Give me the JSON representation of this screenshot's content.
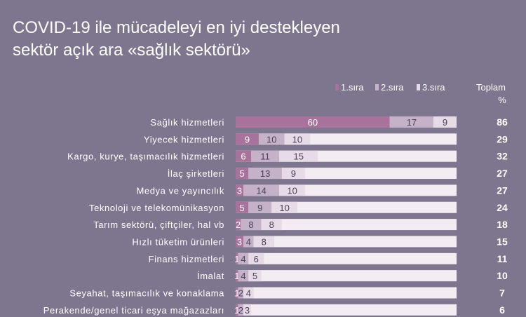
{
  "title_lines": [
    "COVID-19 ile mücadeleyi en iyi destekleyen",
    "sektör açık ara «sağlık sektörü»"
  ],
  "colors": {
    "background": "#7e768f",
    "series1": "#a9729c",
    "series2": "#c6b2c8",
    "series3": "#e6dbe6",
    "track": "#f3edf3"
  },
  "chart_data": {
    "type": "bar",
    "orientation": "horizontal",
    "stacked": true,
    "title": "COVID-19 ile mücadeleyi en iyi destekleyen sektör açık ara «sağlık sektörü»",
    "total_header": [
      "Toplam",
      "%"
    ],
    "xlim": [
      0,
      86
    ],
    "categories": [
      "Sağlık hizmetleri",
      "Yiyecek hizmetleri",
      "Kargo, kurye, taşımacılık hizmetleri",
      "İlaç şirketleri",
      "Medya ve yayıncılık",
      "Teknoloji ve telekomünikasyon",
      "Tarım sektörü, çiftçiler, hal vb",
      "Hızlı tüketim ürünleri",
      "Finans hizmetleri",
      "İmalat",
      "Seyahat, taşımacılık ve konaklama",
      "Perakende/genel ticari eşya mağazazları"
    ],
    "series": [
      {
        "name": "1.sıra",
        "values": [
          60,
          9,
          6,
          5,
          3,
          5,
          2,
          3,
          1,
          1,
          1,
          1
        ]
      },
      {
        "name": "2.sıra",
        "values": [
          17,
          10,
          11,
          13,
          14,
          9,
          8,
          4,
          4,
          4,
          2,
          2
        ]
      },
      {
        "name": "3.sıra",
        "values": [
          9,
          10,
          15,
          9,
          10,
          10,
          8,
          8,
          6,
          5,
          4,
          3
        ]
      }
    ],
    "totals": [
      86,
      29,
      32,
      27,
      27,
      24,
      18,
      15,
      11,
      10,
      7,
      6
    ]
  }
}
